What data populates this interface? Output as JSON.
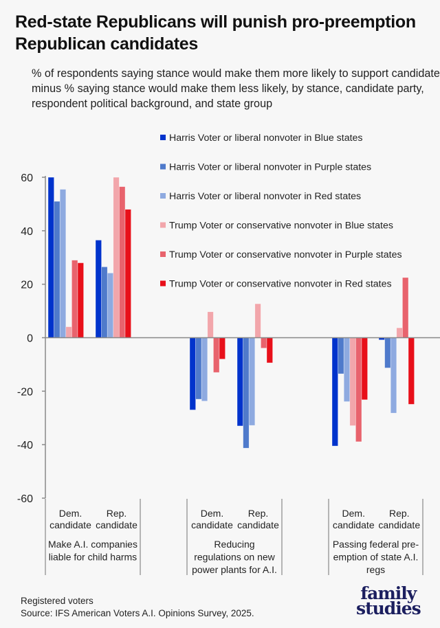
{
  "title": "Red-state Republicans will punish pro-preemption Republican candidates",
  "subtitle": "% of respondents saying stance would make them more likely to support candidate minus % saying stance would make them less likely, by stance, candidate party, respondent political background, and state group",
  "footer": {
    "note": "Registered voters",
    "source": "Source: IFS American Voters A.I. Opinions Survey, 2025."
  },
  "logo": {
    "line1": "family",
    "line2": "studies"
  },
  "chart_data": {
    "type": "bar",
    "ylim": [
      -60,
      60
    ],
    "yticks": [
      "60",
      "40",
      "20",
      "0",
      "-20",
      "-40",
      "-60"
    ],
    "ytick_values": [
      60,
      40,
      20,
      0,
      -20,
      -40,
      -60
    ],
    "legend_position": "top-right",
    "groups": [
      {
        "label": "Make A.I. companies liable for child harms",
        "label_lines": [
          "Make A.I. companies",
          "liable for child harms"
        ],
        "subgroups": [
          {
            "l1": "Dem.",
            "l2": "candidate"
          },
          {
            "l1": "Rep.",
            "l2": "candidate"
          }
        ]
      },
      {
        "label": "Reducing regulations on new power plants for A.I.",
        "label_lines": [
          "Reducing",
          "regulations on new",
          "power plants for A.I."
        ],
        "subgroups": [
          {
            "l1": "Dem.",
            "l2": "candidate"
          },
          {
            "l1": "Rep.",
            "l2": "candidate"
          }
        ]
      },
      {
        "label": "Passing federal pre-emption of state A.I. regs",
        "label_lines": [
          "Passing federal pre-",
          "emption of state A.I.",
          "regs"
        ],
        "subgroups": [
          {
            "l1": "Dem.",
            "l2": "candidate"
          },
          {
            "l1": "Rep.",
            "l2": "candidate"
          }
        ]
      }
    ],
    "series": [
      {
        "name": "Harris Voter or liberal nonvoter in Blue states",
        "color": "#0033cc",
        "values": [
          60,
          36.5,
          -27,
          -33,
          -40.5,
          -0.8
        ]
      },
      {
        "name": "Harris Voter or liberal nonvoter in Purple states",
        "color": "#4f7acb",
        "values": [
          51,
          26.5,
          -23,
          -41.3,
          -13.5,
          -11.3
        ]
      },
      {
        "name": "Harris Voter or liberal nonvoter in Red states",
        "color": "#8eaae0",
        "values": [
          55.5,
          24.2,
          -23.7,
          -32.8,
          -23.9,
          -28.2
        ]
      },
      {
        "name": "Trump Voter or conservative nonvoter in Blue states",
        "color": "#f2a6ab",
        "values": [
          4.1,
          60,
          9.7,
          12.7,
          -32.9,
          3.7
        ]
      },
      {
        "name": "Trump Voter or conservative nonvoter in Purple states",
        "color": "#e8636d",
        "values": [
          29,
          56.5,
          -13,
          -3.9,
          -38.9,
          22.5
        ]
      },
      {
        "name": "Trump Voter or conservative nonvoter in Red states",
        "color": "#e8101a",
        "values": [
          28,
          48,
          -8,
          -9.4,
          -23.2,
          -24.9
        ]
      }
    ]
  }
}
